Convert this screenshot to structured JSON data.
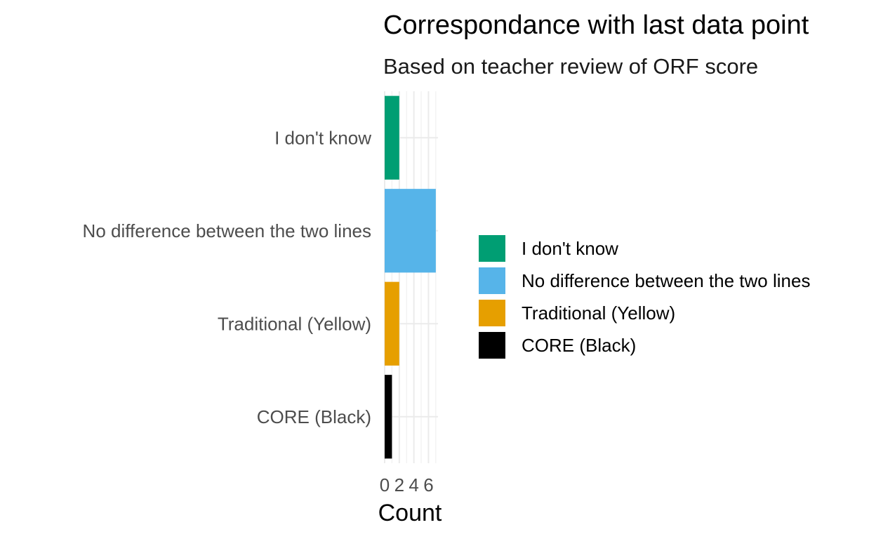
{
  "chart_data": {
    "type": "bar",
    "orientation": "horizontal",
    "title": "Correspondance with last data point",
    "subtitle": "Based on teacher review of ORF score",
    "xlabel": "Count",
    "ylabel": "",
    "categories": [
      "I don't know",
      "No difference between the two lines",
      "Traditional (Yellow)",
      "CORE (Black)"
    ],
    "values": [
      2,
      7,
      2,
      1
    ],
    "colors": [
      "#009E73",
      "#56B4E9",
      "#E69F00",
      "#000000"
    ],
    "xlim": [
      0,
      7.3
    ],
    "xticks": [
      "0",
      "2",
      "4",
      "6"
    ],
    "grid": true,
    "legend": {
      "position": "right",
      "entries": [
        "I don't know",
        "No difference between the two lines",
        "Traditional (Yellow)",
        "CORE (Black)"
      ]
    }
  }
}
